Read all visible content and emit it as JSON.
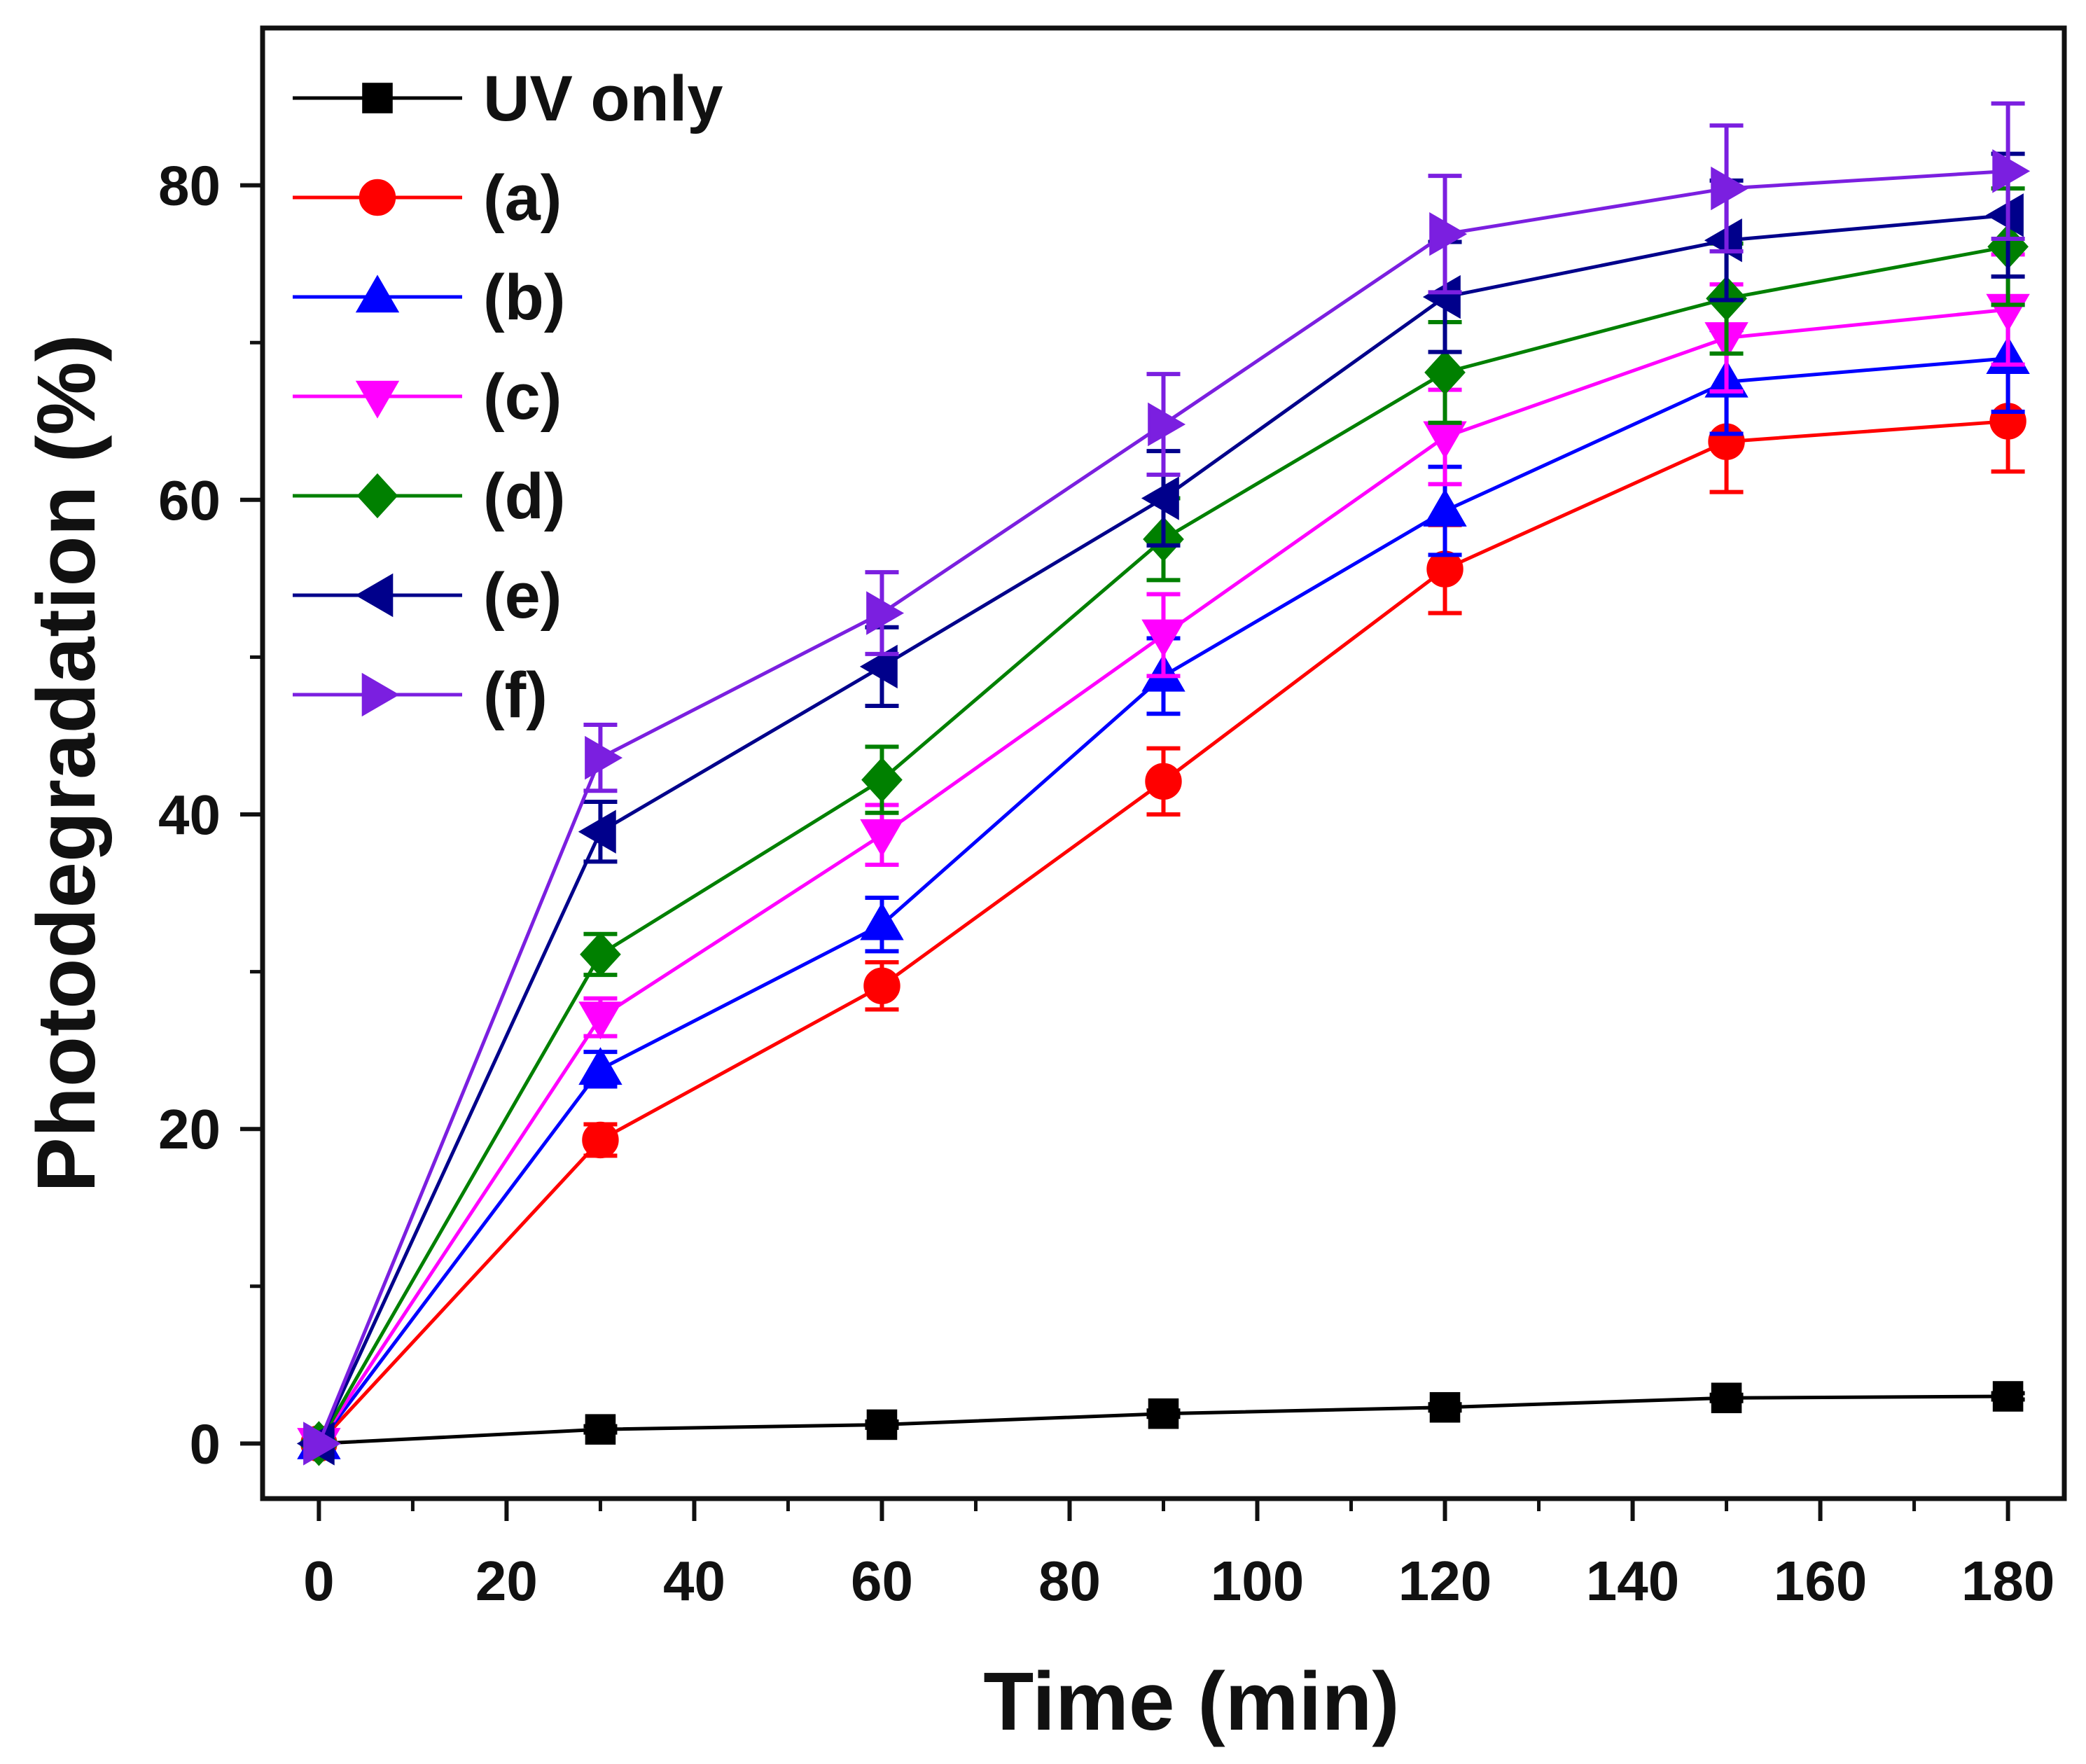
{
  "chart_data": {
    "type": "line",
    "title": "",
    "xlabel": "Time (min)",
    "ylabel": "Photodegradation (%)",
    "xlim": [
      -6,
      186
    ],
    "ylim": [
      -3.5,
      90
    ],
    "xticks": [
      0,
      20,
      40,
      60,
      80,
      100,
      120,
      140,
      160,
      180
    ],
    "yticks": [
      0,
      20,
      40,
      60,
      80
    ],
    "x": [
      0,
      30,
      60,
      90,
      120,
      150,
      180
    ],
    "legend_position": "top-left",
    "grid": false,
    "series": [
      {
        "name": "UV only",
        "color": "#000000",
        "marker": "square",
        "values": [
          0,
          0.9,
          1.2,
          1.9,
          2.3,
          2.9,
          3.0
        ],
        "errors": [
          0,
          0.2,
          0.2,
          0.2,
          0.2,
          0.2,
          0.2
        ]
      },
      {
        "name": "(a)",
        "color": "#ff0000",
        "marker": "circle",
        "values": [
          0,
          19.3,
          29.1,
          42.1,
          55.6,
          63.7,
          65.0
        ],
        "errors": [
          0,
          1.0,
          1.5,
          2.1,
          2.8,
          3.2,
          3.2
        ]
      },
      {
        "name": "(b)",
        "color": "#0000ff",
        "marker": "triangle-up",
        "values": [
          0,
          23.8,
          33.0,
          48.8,
          59.3,
          67.5,
          69.0
        ],
        "errors": [
          0,
          1.1,
          1.7,
          2.4,
          2.8,
          3.3,
          3.4
        ]
      },
      {
        "name": "(c)",
        "color": "#ff00ff",
        "marker": "triangle-down",
        "values": [
          0,
          27.1,
          38.7,
          51.4,
          64.0,
          70.3,
          72.1
        ],
        "errors": [
          0,
          1.2,
          1.9,
          2.6,
          3.0,
          3.4,
          3.5
        ]
      },
      {
        "name": "(d)",
        "color": "#008000",
        "marker": "diamond",
        "values": [
          0,
          31.1,
          42.2,
          57.5,
          68.1,
          72.8,
          76.1
        ],
        "errors": [
          0,
          1.3,
          2.1,
          2.6,
          3.2,
          3.5,
          3.7
        ]
      },
      {
        "name": "(e)",
        "color": "#00008b",
        "marker": "triangle-left",
        "values": [
          0,
          38.9,
          49.4,
          60.1,
          72.9,
          76.5,
          78.1
        ],
        "errors": [
          0,
          1.9,
          2.5,
          3.0,
          3.5,
          3.8,
          3.9
        ]
      },
      {
        "name": "(f)",
        "color": "#7b1fe0",
        "marker": "triangle-right",
        "values": [
          0,
          43.6,
          52.8,
          64.8,
          76.9,
          79.8,
          80.9
        ],
        "errors": [
          0,
          2.1,
          2.6,
          3.2,
          3.7,
          4.0,
          4.3
        ]
      }
    ]
  }
}
